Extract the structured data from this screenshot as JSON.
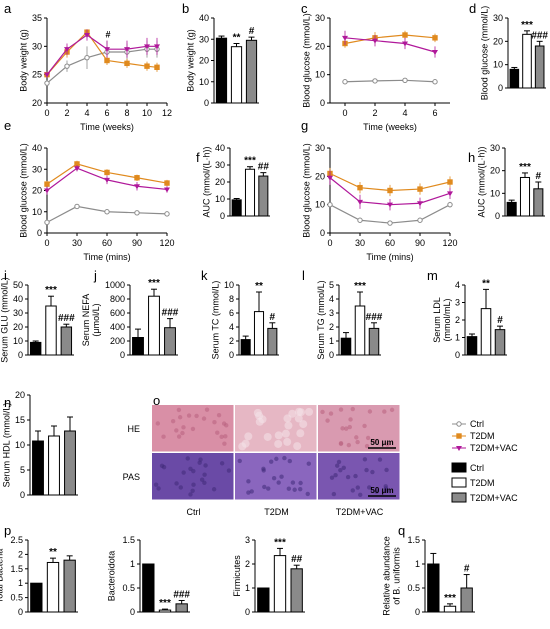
{
  "figure": {
    "legend_lines": [
      {
        "label": "Ctrl",
        "color": "#8c8c8c",
        "marker": "circle"
      },
      {
        "label": "T2DM",
        "color": "#e08a1e",
        "marker": "square"
      },
      {
        "label": "T2DM+VAC",
        "color": "#b0189a",
        "marker": "triangle"
      }
    ],
    "legend_bars": [
      {
        "label": "Ctrl",
        "fill": "#000000"
      },
      {
        "label": "T2DM",
        "fill": "#ffffff"
      },
      {
        "label": "T2DM+VAC",
        "fill": "#8a8a8a"
      }
    ],
    "histology": {
      "row_labels": [
        "HE",
        "PAS"
      ],
      "col_labels": [
        "Ctrl",
        "T2DM",
        "T2DM+VAC"
      ],
      "scale_bar": "50 μm",
      "he_colors": [
        "#d98fa6",
        "#e6b7c4",
        "#d99ab0"
      ],
      "pas_colors": [
        "#6a4aa6",
        "#8a66be",
        "#7a56b0"
      ]
    }
  },
  "chart_data": [
    {
      "panel": "a",
      "type": "line",
      "ylabel": "Body weight (g)",
      "xlabel": "Time (weeks)",
      "x": [
        0,
        2,
        4,
        6,
        8,
        10,
        11
      ],
      "xticks": [
        0,
        2,
        4,
        6,
        8,
        10,
        12
      ],
      "xlim": [
        0,
        12
      ],
      "ylim": [
        20,
        35
      ],
      "yticks": [
        20,
        25,
        30,
        35
      ],
      "series": [
        {
          "name": "Ctrl",
          "values": [
            23.5,
            26.5,
            28,
            29,
            29,
            29.5,
            29.5
          ],
          "err": [
            0.5,
            1,
            2,
            2,
            1.5,
            1.5,
            1.5
          ]
        },
        {
          "name": "T2DM",
          "values": [
            25,
            29,
            32.5,
            27.5,
            27,
            26.5,
            26.3
          ],
          "err": [
            0.5,
            1,
            0.5,
            0.8,
            0.8,
            0.8,
            0.8
          ]
        },
        {
          "name": "T2DM+VAC",
          "values": [
            25,
            29.5,
            32,
            29.5,
            29.5,
            30,
            30
          ],
          "err": [
            0.5,
            1,
            1,
            1.5,
            1.5,
            1.5,
            1.5
          ]
        }
      ],
      "annotations": [
        "#"
      ]
    },
    {
      "panel": "b",
      "type": "bar",
      "ylabel": "Body weight (g)",
      "ylim": [
        0,
        40
      ],
      "yticks": [
        0,
        10,
        20,
        30,
        40
      ],
      "values": [
        30.5,
        26.5,
        29.5
      ],
      "err": [
        1,
        1.5,
        1.5
      ],
      "sig": [
        "",
        "**",
        "#"
      ]
    },
    {
      "panel": "c",
      "type": "line",
      "ylabel": "Blood glucose (mmol/L)",
      "xlabel": "Time (weeks)",
      "x": [
        0,
        2,
        4,
        6
      ],
      "xticks": [
        0,
        2,
        4,
        6
      ],
      "xlim": [
        -1,
        7
      ],
      "ylim": [
        0,
        30
      ],
      "yticks": [
        0,
        10,
        20,
        30
      ],
      "series": [
        {
          "name": "Ctrl",
          "values": [
            7.5,
            7.8,
            8,
            7.5
          ],
          "err": [
            0.5,
            0.5,
            0.8,
            0.5
          ]
        },
        {
          "name": "T2DM",
          "values": [
            21,
            23,
            24,
            23
          ],
          "err": [
            1.5,
            2,
            1.5,
            1.5
          ]
        },
        {
          "name": "T2DM+VAC",
          "values": [
            23,
            22,
            21,
            18
          ],
          "err": [
            2.5,
            2,
            2,
            2
          ]
        }
      ]
    },
    {
      "panel": "d",
      "type": "bar",
      "ylabel": "Blood glucose (mmol/L)",
      "ylim": [
        0,
        30
      ],
      "yticks": [
        0,
        10,
        20,
        30
      ],
      "values": [
        8,
        23,
        18
      ],
      "err": [
        0.8,
        1.5,
        2
      ],
      "sig": [
        "",
        "***",
        "###"
      ]
    },
    {
      "panel": "e",
      "type": "line",
      "ylabel": "Blood glucose (mmol/L)",
      "xlabel": "Time (mins)",
      "x": [
        0,
        30,
        60,
        90,
        120
      ],
      "xticks": [
        0,
        30,
        60,
        90,
        120
      ],
      "xlim": [
        0,
        120
      ],
      "ylim": [
        0,
        40
      ],
      "yticks": [
        0,
        10,
        20,
        30,
        40
      ],
      "series": [
        {
          "name": "Ctrl",
          "values": [
            5,
            12.5,
            10,
            9.5,
            9
          ],
          "err": [
            0.5,
            0.8,
            0.8,
            0.8,
            0.8
          ]
        },
        {
          "name": "T2DM",
          "values": [
            23,
            32.5,
            28.5,
            26,
            23.5
          ],
          "err": [
            1.5,
            1.5,
            1.5,
            1.5,
            1.5
          ]
        },
        {
          "name": "T2DM+VAC",
          "values": [
            20,
            30.5,
            25,
            22,
            20.5
          ],
          "err": [
            2,
            1.5,
            2,
            2,
            1.5
          ]
        }
      ]
    },
    {
      "panel": "f",
      "type": "bar",
      "ylabel": "AUC (mmol/(L·h))",
      "ylim": [
        0,
        40
      ],
      "yticks": [
        0,
        10,
        20,
        30,
        40
      ],
      "values": [
        9.5,
        27.5,
        23.5
      ],
      "err": [
        0.8,
        1.5,
        2
      ],
      "sig": [
        "",
        "***",
        "##"
      ]
    },
    {
      "panel": "g",
      "type": "line",
      "ylabel": "Blood glucose (mmol/L)",
      "xlabel": "Time (mins)",
      "x": [
        0,
        30,
        60,
        90,
        120
      ],
      "xticks": [
        0,
        30,
        60,
        90,
        120
      ],
      "xlim": [
        0,
        120
      ],
      "ylim": [
        0,
        30
      ],
      "yticks": [
        0,
        10,
        20,
        30
      ],
      "series": [
        {
          "name": "Ctrl",
          "values": [
            10,
            4.5,
            3.5,
            4.5,
            10
          ],
          "err": [
            0.8,
            0.8,
            0.8,
            0.8,
            1
          ]
        },
        {
          "name": "T2DM",
          "values": [
            21,
            16,
            15,
            15.5,
            18
          ],
          "err": [
            2,
            2,
            2,
            2,
            2
          ]
        },
        {
          "name": "T2DM+VAC",
          "values": [
            19.5,
            11,
            10,
            10.5,
            14
          ],
          "err": [
            2.5,
            2.5,
            2,
            2,
            2
          ]
        }
      ]
    },
    {
      "panel": "h",
      "type": "bar",
      "ylabel": "AUC (mmol/(L·h))",
      "ylim": [
        0,
        30
      ],
      "yticks": [
        0,
        10,
        20,
        30
      ],
      "values": [
        6,
        17,
        12
      ],
      "err": [
        1,
        2,
        3
      ],
      "sig": [
        "",
        "***",
        "#"
      ]
    },
    {
      "panel": "i",
      "type": "bar",
      "ylabel": "Serum GLU (mmol/L)",
      "ylim": [
        0,
        50
      ],
      "yticks": [
        0,
        10,
        20,
        30,
        40,
        50
      ],
      "values": [
        9,
        35,
        20
      ],
      "err": [
        1,
        7,
        2
      ],
      "sig": [
        "",
        "***",
        "###"
      ]
    },
    {
      "panel": "j",
      "type": "bar",
      "ylabel": [
        "Serum NEFA",
        "(μmol/L)"
      ],
      "ylim": [
        0,
        1000
      ],
      "yticks": [
        0,
        200,
        400,
        600,
        800,
        1000
      ],
      "values": [
        250,
        840,
        390
      ],
      "err": [
        120,
        100,
        130
      ],
      "sig": [
        "",
        "***",
        "###"
      ]
    },
    {
      "panel": "k",
      "type": "bar",
      "ylabel": "Serum TC (mmol/L)",
      "ylim": [
        0,
        10
      ],
      "yticks": [
        0,
        2,
        4,
        6,
        8,
        10
      ],
      "values": [
        2.2,
        6.2,
        3.8
      ],
      "err": [
        0.5,
        2.8,
        0.8
      ],
      "sig": [
        "",
        "**",
        "#"
      ]
    },
    {
      "panel": "l",
      "type": "bar",
      "ylabel": "Serum TG (mmol/L)",
      "ylim": [
        0,
        5
      ],
      "yticks": [
        0,
        1,
        2,
        3,
        4,
        5
      ],
      "values": [
        1.2,
        3.5,
        1.9
      ],
      "err": [
        0.4,
        1,
        0.4
      ],
      "sig": [
        "",
        "***",
        "###"
      ]
    },
    {
      "panel": "m",
      "type": "bar",
      "ylabel": [
        "Serum LDL",
        "(mmol/mL)"
      ],
      "ylim": [
        0,
        4
      ],
      "yticks": [
        0,
        1,
        2,
        3,
        4
      ],
      "values": [
        1.05,
        2.65,
        1.45
      ],
      "err": [
        0.15,
        1.1,
        0.2
      ],
      "sig": [
        "",
        "**",
        "#"
      ]
    },
    {
      "panel": "n",
      "type": "bar",
      "ylabel": "Serum HDL (mmol/L)",
      "ylim": [
        0,
        20
      ],
      "yticks": [
        0,
        5,
        10,
        15,
        20
      ],
      "values": [
        10.8,
        11.8,
        12.8
      ],
      "err": [
        2,
        2,
        2.8
      ],
      "sig": [
        "",
        "",
        ""
      ]
    },
    {
      "panel": "p",
      "type": "bar",
      "ylabel": "Total Bacteria",
      "ylim": [
        0,
        2.5
      ],
      "yticks": [
        0,
        0.5,
        1.0,
        1.5,
        2.0,
        2.5
      ],
      "values": [
        1.0,
        1.72,
        1.8
      ],
      "err": [
        0,
        0.15,
        0.15
      ],
      "sig": [
        "",
        "**",
        ""
      ]
    },
    {
      "panel": "p2",
      "type": "bar",
      "ylabel": "Bacteroidota",
      "ylim": [
        0,
        1.5
      ],
      "yticks": [
        0,
        0.5,
        1.0,
        1.5
      ],
      "values": [
        1.0,
        0.04,
        0.17
      ],
      "err": [
        0,
        0.02,
        0.07
      ],
      "sig": [
        "",
        "***",
        "###"
      ]
    },
    {
      "panel": "p3",
      "type": "bar",
      "ylabel": "Firmicutes",
      "ylim": [
        0,
        3
      ],
      "yticks": [
        0,
        1,
        2,
        3
      ],
      "values": [
        1.0,
        2.35,
        1.8
      ],
      "err": [
        0,
        0.3,
        0.15
      ],
      "sig": [
        "",
        "***",
        "##"
      ]
    },
    {
      "panel": "q",
      "type": "bar",
      "ylabel": [
        "Relative abundance",
        "of B. uniformis"
      ],
      "ylim": [
        0,
        1.5
      ],
      "yticks": [
        0,
        0.5,
        1.0,
        1.5
      ],
      "values": [
        1.0,
        0.12,
        0.5
      ],
      "err": [
        0.22,
        0.05,
        0.28
      ],
      "sig": [
        "",
        "***",
        "#"
      ]
    }
  ]
}
